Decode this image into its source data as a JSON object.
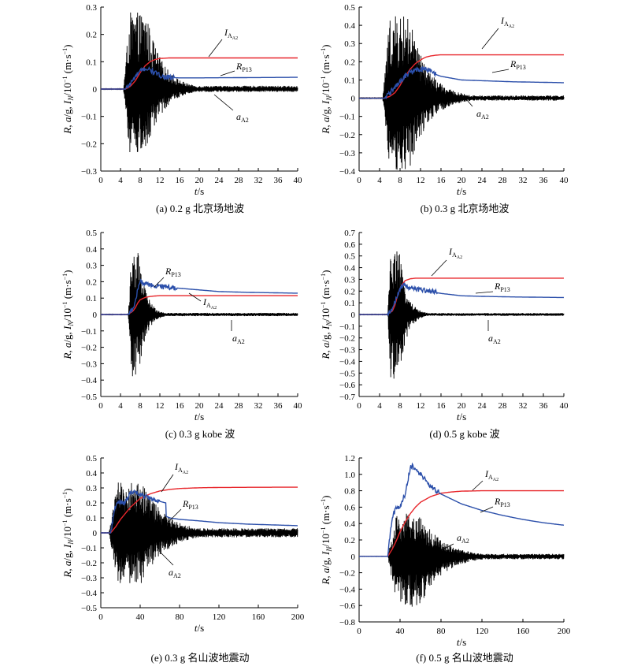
{
  "colors": {
    "accel": "#000000",
    "impulse": "#e8262b",
    "rotation": "#2b4faa"
  },
  "chart_data": [
    {
      "type": "line",
      "caption": "(a) 0.2 g 北京场地波",
      "xlabel": "t/s",
      "ylabel": "R, a/g, I_N/10⁻¹ (m·s⁻¹)",
      "xlim": [
        0,
        40
      ],
      "ylim": [
        -0.3,
        0.3
      ],
      "xticks": [
        0,
        4,
        8,
        12,
        16,
        20,
        24,
        28,
        32,
        36,
        40
      ],
      "yticks": [
        -0.3,
        -0.2,
        -0.1,
        0,
        0.1,
        0.2,
        0.3
      ],
      "grid": false,
      "annotations": {
        "impulse": {
          "main": "I",
          "sub": "A",
          "subsub": "A2"
        },
        "rotation": {
          "main": "R",
          "sub": "P13"
        },
        "accel": {
          "main": "a",
          "sub": "A2"
        }
      },
      "series": [
        {
          "name": "a_A2",
          "kind": "accel",
          "t_start": 4.6,
          "t_peak_end": 13,
          "peak_pos": 0.28,
          "peak_neg": -0.24,
          "tail": 0.012
        },
        {
          "name": "I_A2",
          "kind": "impulse",
          "x": [
            0,
            5,
            6,
            7,
            8,
            9,
            10,
            11,
            12,
            13,
            14,
            40
          ],
          "y": [
            0,
            0,
            0.01,
            0.03,
            0.06,
            0.085,
            0.1,
            0.108,
            0.112,
            0.113,
            0.114,
            0.114
          ]
        },
        {
          "name": "R_P13",
          "kind": "rotation",
          "x": [
            0,
            5,
            6,
            7,
            8,
            9,
            10,
            11,
            12,
            13,
            14,
            16,
            20,
            30,
            40
          ],
          "y": [
            0,
            0,
            0.02,
            0.045,
            0.065,
            0.075,
            0.07,
            0.06,
            0.05,
            0.045,
            0.042,
            0.041,
            0.041,
            0.042,
            0.043
          ]
        }
      ]
    },
    {
      "type": "line",
      "caption": "(b) 0.3 g 北京场地波",
      "xlabel": "t/s",
      "ylabel": "R, a/g, I_N/10⁻¹ (m·s⁻¹)",
      "xlim": [
        0,
        40
      ],
      "ylim": [
        -0.4,
        0.5
      ],
      "xticks": [
        0,
        4,
        8,
        12,
        16,
        20,
        24,
        28,
        32,
        36,
        40
      ],
      "yticks": [
        -0.4,
        -0.3,
        -0.2,
        -0.1,
        0,
        0.1,
        0.2,
        0.3,
        0.4,
        0.5
      ],
      "grid": false,
      "annotations": {
        "impulse": {
          "main": "I",
          "sub": "A",
          "subsub": "A2"
        },
        "rotation": {
          "main": "R",
          "sub": "P13"
        },
        "accel": {
          "main": "a",
          "sub": "A2"
        }
      },
      "series": [
        {
          "name": "a_A2",
          "kind": "accel",
          "t_start": 4.6,
          "t_peak_end": 14,
          "peak_pos": 0.45,
          "peak_neg": -0.4,
          "tail": 0.015
        },
        {
          "name": "I_A2",
          "kind": "impulse",
          "x": [
            0,
            5,
            6,
            7,
            8,
            9,
            10,
            11,
            12,
            13,
            14,
            15,
            16,
            40
          ],
          "y": [
            0,
            0,
            0.01,
            0.03,
            0.07,
            0.12,
            0.16,
            0.19,
            0.21,
            0.225,
            0.232,
            0.236,
            0.238,
            0.238
          ]
        },
        {
          "name": "R_P13",
          "kind": "rotation",
          "x": [
            0,
            5,
            6,
            7,
            8,
            9,
            10,
            11,
            12,
            13,
            14,
            15,
            16,
            18,
            20,
            25,
            30,
            40
          ],
          "y": [
            0,
            0,
            0.03,
            0.06,
            0.09,
            0.12,
            0.14,
            0.15,
            0.16,
            0.16,
            0.15,
            0.13,
            0.12,
            0.11,
            0.1,
            0.095,
            0.09,
            0.085
          ]
        }
      ]
    },
    {
      "type": "line",
      "caption": "(c) 0.3 g kobe 波",
      "xlabel": "t/s",
      "ylabel": "R, a/g, I_N/10⁻¹ (m·s⁻¹)",
      "xlim": [
        0,
        40
      ],
      "ylim": [
        -0.5,
        0.5
      ],
      "xticks": [
        0,
        4,
        8,
        12,
        16,
        20,
        24,
        28,
        32,
        36,
        40
      ],
      "yticks": [
        -0.5,
        -0.4,
        -0.3,
        -0.2,
        -0.1,
        0,
        0.1,
        0.2,
        0.3,
        0.4,
        0.5
      ],
      "grid": false,
      "annotations": {
        "impulse": {
          "main": "I",
          "sub": "A",
          "subsub": "A2"
        },
        "rotation": {
          "main": "R",
          "sub": "P13"
        },
        "accel": {
          "main": "a",
          "sub": "A2"
        }
      },
      "series": [
        {
          "name": "a_A2",
          "kind": "accel",
          "t_start": 5.6,
          "t_peak_end": 9.5,
          "peak_pos": 0.38,
          "peak_neg": -0.38,
          "tail": 0.01
        },
        {
          "name": "I_A2",
          "kind": "impulse",
          "x": [
            0,
            5.5,
            6.5,
            7,
            7.5,
            8,
            9,
            10,
            11,
            12,
            40
          ],
          "y": [
            0,
            0,
            0.02,
            0.04,
            0.07,
            0.09,
            0.104,
            0.11,
            0.113,
            0.115,
            0.115
          ]
        },
        {
          "name": "R_P13",
          "kind": "rotation",
          "x": [
            0,
            5.5,
            6.5,
            7,
            7.5,
            8,
            9,
            10,
            12,
            16,
            20,
            24,
            30,
            40
          ],
          "y": [
            0,
            0,
            0.03,
            0.08,
            0.15,
            0.2,
            0.19,
            0.18,
            0.17,
            0.16,
            0.15,
            0.14,
            0.135,
            0.13
          ]
        }
      ]
    },
    {
      "type": "line",
      "caption": "(d) 0.5 g kobe 波",
      "xlabel": "t/s",
      "ylabel": "R, a/g, I_N/10⁻¹ (m·s⁻¹)",
      "xlim": [
        0,
        40
      ],
      "ylim": [
        -0.7,
        0.7
      ],
      "xticks": [
        0,
        4,
        8,
        12,
        16,
        20,
        24,
        28,
        32,
        36,
        40
      ],
      "yticks": [
        -0.7,
        -0.6,
        -0.5,
        -0.4,
        -0.3,
        -0.2,
        -0.1,
        0,
        0.1,
        0.2,
        0.3,
        0.4,
        0.5,
        0.6,
        0.7
      ],
      "grid": false,
      "annotations": {
        "impulse": {
          "main": "I",
          "sub": "A",
          "subsub": "A2"
        },
        "rotation": {
          "main": "R",
          "sub": "P13"
        },
        "accel": {
          "main": "a",
          "sub": "A2"
        }
      },
      "series": [
        {
          "name": "a_A2",
          "kind": "accel",
          "t_start": 5.6,
          "t_peak_end": 9.5,
          "peak_pos": 0.58,
          "peak_neg": -0.57,
          "tail": 0.012
        },
        {
          "name": "I_A2",
          "kind": "impulse",
          "x": [
            0,
            5.5,
            6.5,
            7,
            7.5,
            8,
            8.5,
            9,
            10,
            11,
            12,
            40
          ],
          "y": [
            0,
            0,
            0.03,
            0.08,
            0.16,
            0.22,
            0.26,
            0.29,
            0.305,
            0.31,
            0.31,
            0.31
          ]
        },
        {
          "name": "R_P13",
          "kind": "rotation",
          "x": [
            0,
            5.5,
            6.5,
            7,
            7.5,
            8,
            8.5,
            9,
            10,
            12,
            14,
            16,
            18,
            20,
            24,
            30,
            40
          ],
          "y": [
            0,
            0,
            0.05,
            0.1,
            0.17,
            0.22,
            0.25,
            0.245,
            0.23,
            0.21,
            0.195,
            0.18,
            0.17,
            0.16,
            0.155,
            0.15,
            0.145
          ]
        }
      ]
    },
    {
      "type": "line",
      "caption": "(e) 0.3 g 名山波地震动",
      "xlabel": "t/s",
      "ylabel": "R, a/g, I_N/10⁻¹ (m·s⁻¹)",
      "xlim": [
        0,
        200
      ],
      "ylim": [
        -0.5,
        0.5
      ],
      "xticks": [
        0,
        40,
        80,
        120,
        160,
        200
      ],
      "yticks": [
        -0.5,
        -0.4,
        -0.3,
        -0.2,
        -0.1,
        0,
        0.1,
        0.2,
        0.3,
        0.4,
        0.5
      ],
      "grid": false,
      "annotations": {
        "impulse": {
          "main": "I",
          "sub": "A",
          "subsub": "A2"
        },
        "rotation": {
          "main": "R",
          "sub": "P13"
        },
        "accel": {
          "main": "a",
          "sub": "A2"
        }
      },
      "series": [
        {
          "name": "a_A2",
          "kind": "accel",
          "t_start": 8,
          "t_peak_end": 70,
          "peak_pos": 0.34,
          "peak_neg": -0.34,
          "tail": 0.03
        },
        {
          "name": "I_A2",
          "kind": "impulse",
          "x": [
            0,
            10,
            15,
            20,
            25,
            30,
            35,
            40,
            50,
            60,
            70,
            80,
            100,
            120,
            150,
            200
          ],
          "y": [
            0,
            0,
            0.04,
            0.09,
            0.13,
            0.17,
            0.2,
            0.23,
            0.26,
            0.28,
            0.29,
            0.296,
            0.301,
            0.303,
            0.304,
            0.305
          ]
        },
        {
          "name": "R_P13",
          "kind": "rotation",
          "x": [
            0,
            10,
            14,
            17,
            20,
            23,
            26,
            30,
            35,
            40,
            50,
            60,
            66,
            66.5,
            70,
            80,
            100,
            120,
            150,
            180,
            200
          ],
          "y": [
            0,
            0,
            0.16,
            0.2,
            0.21,
            0.19,
            0.22,
            0.27,
            0.27,
            0.26,
            0.23,
            0.21,
            0.2,
            0.11,
            0.1,
            0.09,
            0.08,
            0.068,
            0.058,
            0.052,
            0.048
          ]
        }
      ]
    },
    {
      "type": "line",
      "caption": "(f) 0.5 g 名山波地震动",
      "xlabel": "t/s",
      "ylabel": "R, a/g, I_N/10⁻¹ (m·s⁻¹)",
      "xlim": [
        0,
        200
      ],
      "ylim": [
        -0.8,
        1.2
      ],
      "xticks": [
        0,
        40,
        80,
        120,
        160,
        200
      ],
      "yticks": [
        -0.8,
        -0.6,
        -0.4,
        -0.2,
        0,
        0.2,
        0.4,
        0.6,
        0.8,
        1.0,
        1.2
      ],
      "grid": false,
      "annotations": {
        "impulse": {
          "main": "I",
          "sub": "A",
          "subsub": "A2"
        },
        "rotation": {
          "main": "R",
          "sub": "P13"
        },
        "accel": {
          "main": "a",
          "sub": "A2"
        }
      },
      "series": [
        {
          "name": "a_A2",
          "kind": "accel",
          "t_start": 28,
          "t_peak_end": 85,
          "peak_pos": 0.52,
          "peak_neg": -0.62,
          "tail": 0.03
        },
        {
          "name": "I_A2",
          "kind": "impulse",
          "x": [
            0,
            28,
            32,
            36,
            40,
            45,
            50,
            55,
            60,
            70,
            80,
            90,
            100,
            120,
            150,
            200
          ],
          "y": [
            0,
            0,
            0.08,
            0.18,
            0.3,
            0.42,
            0.52,
            0.6,
            0.66,
            0.73,
            0.77,
            0.785,
            0.795,
            0.8,
            0.8,
            0.8
          ]
        },
        {
          "name": "R_P13",
          "kind": "rotation",
          "x": [
            0,
            28,
            31,
            33,
            36,
            40,
            45,
            48,
            50,
            52,
            55,
            60,
            65,
            70,
            75,
            80,
            90,
            100,
            120,
            140,
            160,
            180,
            200
          ],
          "y": [
            0,
            0,
            0.35,
            0.5,
            0.58,
            0.62,
            0.75,
            0.95,
            1.08,
            1.1,
            1.04,
            1.0,
            0.93,
            0.85,
            0.8,
            0.76,
            0.7,
            0.64,
            0.56,
            0.5,
            0.45,
            0.41,
            0.38
          ]
        }
      ]
    }
  ]
}
